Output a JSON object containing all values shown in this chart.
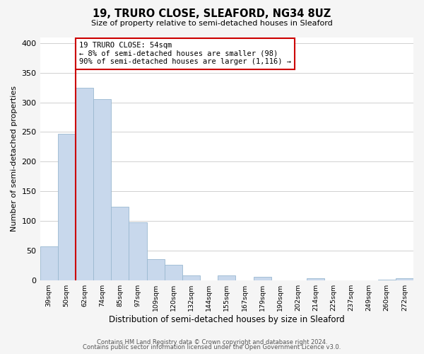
{
  "title": "19, TRURO CLOSE, SLEAFORD, NG34 8UZ",
  "subtitle": "Size of property relative to semi-detached houses in Sleaford",
  "xlabel": "Distribution of semi-detached houses by size in Sleaford",
  "ylabel": "Number of semi-detached properties",
  "categories": [
    "39sqm",
    "50sqm",
    "62sqm",
    "74sqm",
    "85sqm",
    "97sqm",
    "109sqm",
    "120sqm",
    "132sqm",
    "144sqm",
    "155sqm",
    "167sqm",
    "179sqm",
    "190sqm",
    "202sqm",
    "214sqm",
    "225sqm",
    "237sqm",
    "249sqm",
    "260sqm",
    "272sqm"
  ],
  "values": [
    57,
    247,
    325,
    305,
    124,
    98,
    35,
    26,
    8,
    0,
    8,
    0,
    6,
    0,
    0,
    3,
    0,
    0,
    0,
    1,
    3
  ],
  "bar_color": "#c8d8ec",
  "bar_edge_color": "#9ab8d0",
  "marker_color": "#cc0000",
  "annotation_line1": "19 TRURO CLOSE: 54sqm",
  "annotation_line2": "← 8% of semi-detached houses are smaller (98)",
  "annotation_line3": "90% of semi-detached houses are larger (1,116) →",
  "ylim": [
    0,
    410
  ],
  "yticks": [
    0,
    50,
    100,
    150,
    200,
    250,
    300,
    350,
    400
  ],
  "footer1": "Contains HM Land Registry data © Crown copyright and database right 2024.",
  "footer2": "Contains public sector information licensed under the Open Government Licence v3.0.",
  "background_color": "#f5f5f5",
  "plot_background": "#ffffff",
  "grid_color": "#d0d0d0"
}
